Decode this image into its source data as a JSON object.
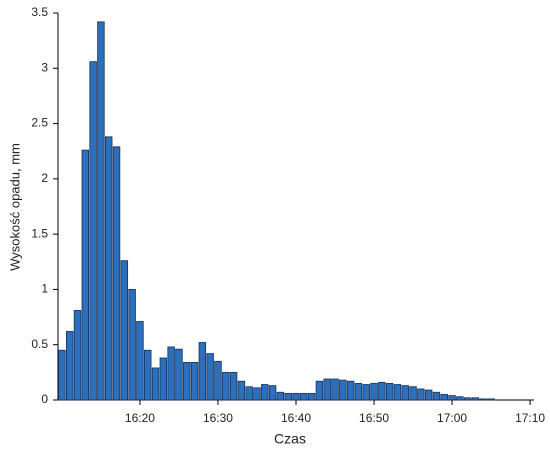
{
  "chart_data": {
    "type": "bar",
    "x_label": "Czas",
    "y_label": "Wysokość opadu, mm",
    "x": [
      970,
      971,
      972,
      973,
      974,
      975,
      976,
      977,
      978,
      979,
      980,
      981,
      982,
      983,
      984,
      985,
      986,
      987,
      988,
      989,
      990,
      991,
      992,
      993,
      994,
      995,
      996,
      997,
      998,
      999,
      1000,
      1001,
      1002,
      1003,
      1004,
      1005,
      1006,
      1007,
      1008,
      1009,
      1010,
      1011,
      1012,
      1013,
      1014,
      1015,
      1016,
      1017,
      1018,
      1019,
      1020,
      1021,
      1022,
      1023,
      1024,
      1025
    ],
    "values": [
      0.45,
      0.62,
      0.81,
      2.26,
      3.06,
      3.42,
      2.38,
      2.29,
      1.26,
      1.0,
      0.71,
      0.45,
      0.29,
      0.38,
      0.48,
      0.46,
      0.34,
      0.34,
      0.52,
      0.42,
      0.35,
      0.25,
      0.25,
      0.17,
      0.12,
      0.11,
      0.14,
      0.13,
      0.07,
      0.06,
      0.06,
      0.06,
      0.06,
      0.17,
      0.19,
      0.19,
      0.18,
      0.17,
      0.15,
      0.14,
      0.15,
      0.16,
      0.15,
      0.14,
      0.13,
      0.12,
      0.1,
      0.09,
      0.07,
      0.05,
      0.04,
      0.03,
      0.02,
      0.02,
      0.01,
      0.01
    ],
    "color": "#2c6fbd",
    "xlim": [
      969.5,
      1030.5
    ],
    "xticks": [
      {
        "value": 980,
        "label": "16:20"
      },
      {
        "value": 990,
        "label": "16:30"
      },
      {
        "value": 1000,
        "label": "16:40"
      },
      {
        "value": 1010,
        "label": "16:50"
      },
      {
        "value": 1020,
        "label": "17:00"
      },
      {
        "value": 1030,
        "label": "17:10"
      }
    ],
    "ylim": [
      0,
      3.5
    ],
    "yticks": [
      0,
      0.5,
      1,
      1.5,
      2,
      2.5,
      3,
      3.5
    ]
  }
}
